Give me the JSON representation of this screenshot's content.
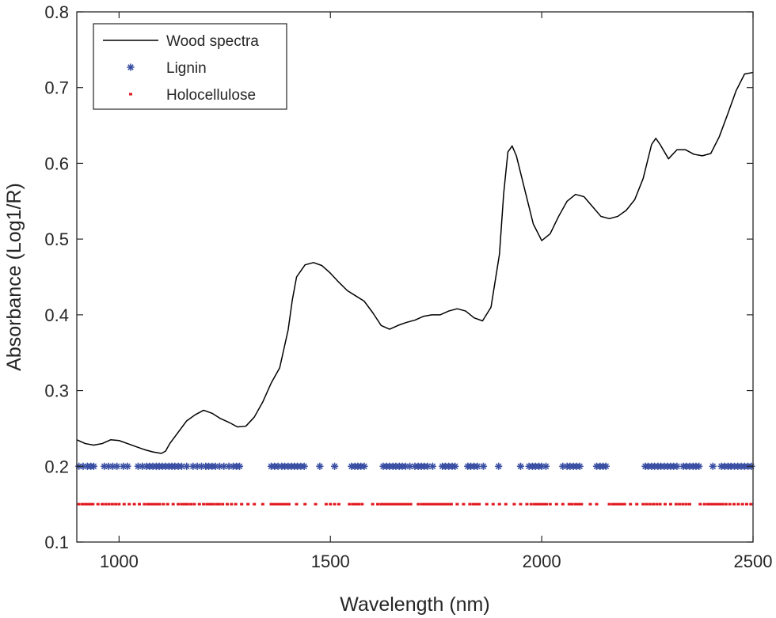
{
  "chart_data": {
    "type": "line",
    "xlabel": "Wavelength (nm)",
    "ylabel": "Absorbance (Log1/R)",
    "xlim": [
      900,
      2500
    ],
    "ylim": [
      0.1,
      0.8
    ],
    "x_ticks": [
      1000,
      1500,
      2000,
      2500
    ],
    "y_ticks": [
      0.1,
      0.2,
      0.3,
      0.4,
      0.5,
      0.6,
      0.7,
      0.8
    ],
    "x_tick_labels": [
      "1000",
      "1500",
      "2000",
      "2500"
    ],
    "y_tick_labels": [
      "0.1",
      "0.2",
      "0.3",
      "0.4",
      "0.5",
      "0.6",
      "0.7",
      "0.8"
    ],
    "grid": false,
    "legend_position": "top-left",
    "series": [
      {
        "name": "Wood spectra",
        "style": "line",
        "color": "#000000",
        "x": [
          900,
          920,
          940,
          960,
          980,
          1000,
          1020,
          1040,
          1060,
          1080,
          1100,
          1110,
          1120,
          1140,
          1160,
          1180,
          1200,
          1220,
          1240,
          1260,
          1280,
          1300,
          1320,
          1340,
          1360,
          1380,
          1400,
          1410,
          1420,
          1440,
          1460,
          1480,
          1500,
          1520,
          1540,
          1560,
          1580,
          1600,
          1620,
          1640,
          1660,
          1680,
          1700,
          1720,
          1740,
          1760,
          1780,
          1800,
          1820,
          1840,
          1860,
          1880,
          1900,
          1910,
          1920,
          1930,
          1940,
          1960,
          1980,
          2000,
          2020,
          2040,
          2060,
          2080,
          2100,
          2120,
          2140,
          2160,
          2180,
          2200,
          2220,
          2240,
          2260,
          2270,
          2280,
          2300,
          2320,
          2340,
          2360,
          2380,
          2400,
          2420,
          2440,
          2460,
          2480,
          2500
        ],
        "y": [
          0.235,
          0.23,
          0.228,
          0.23,
          0.235,
          0.234,
          0.23,
          0.226,
          0.222,
          0.219,
          0.217,
          0.22,
          0.23,
          0.245,
          0.26,
          0.268,
          0.274,
          0.27,
          0.263,
          0.258,
          0.252,
          0.253,
          0.265,
          0.285,
          0.31,
          0.33,
          0.38,
          0.42,
          0.45,
          0.466,
          0.469,
          0.465,
          0.455,
          0.443,
          0.432,
          0.425,
          0.418,
          0.403,
          0.386,
          0.381,
          0.386,
          0.39,
          0.393,
          0.398,
          0.4,
          0.4,
          0.405,
          0.408,
          0.405,
          0.396,
          0.392,
          0.41,
          0.48,
          0.56,
          0.615,
          0.623,
          0.61,
          0.565,
          0.52,
          0.498,
          0.507,
          0.53,
          0.55,
          0.559,
          0.556,
          0.543,
          0.53,
          0.527,
          0.53,
          0.538,
          0.552,
          0.58,
          0.625,
          0.633,
          0.625,
          0.606,
          0.618,
          0.618,
          0.612,
          0.61,
          0.613,
          0.635,
          0.665,
          0.696,
          0.718,
          0.72
        ]
      },
      {
        "name": "Lignin",
        "style": "marker-asterisk",
        "color": "#3a4fa3",
        "y_level": 0.2,
        "x": [
          905,
          915,
          925,
          933,
          940,
          965,
          975,
          985,
          995,
          1010,
          1020,
          1045,
          1055,
          1065,
          1072,
          1080,
          1088,
          1095,
          1102,
          1110,
          1118,
          1125,
          1132,
          1140,
          1148,
          1160,
          1175,
          1185,
          1195,
          1205,
          1212,
          1220,
          1228,
          1238,
          1248,
          1260,
          1270,
          1278,
          1285,
          1360,
          1368,
          1376,
          1385,
          1392,
          1400,
          1408,
          1415,
          1422,
          1430,
          1438,
          1475,
          1510,
          1550,
          1558,
          1565,
          1572,
          1580,
          1625,
          1633,
          1640,
          1648,
          1655,
          1663,
          1670,
          1678,
          1688,
          1700,
          1708,
          1715,
          1722,
          1730,
          1742,
          1765,
          1772,
          1780,
          1788,
          1795,
          1825,
          1832,
          1840,
          1848,
          1862,
          1898,
          1950,
          1970,
          1978,
          1985,
          1993,
          2000,
          2010,
          2050,
          2060,
          2067,
          2075,
          2082,
          2090,
          2130,
          2138,
          2145,
          2152,
          2245,
          2252,
          2260,
          2267,
          2275,
          2282,
          2290,
          2298,
          2305,
          2312,
          2320,
          2335,
          2342,
          2350,
          2358,
          2365,
          2372,
          2405,
          2425,
          2433,
          2441,
          2448,
          2456,
          2464,
          2472,
          2480,
          2488,
          2496
        ]
      },
      {
        "name": "Holocellulose",
        "style": "marker-dot",
        "color": "#e0141b",
        "y_level": 0.15,
        "x": [
          905,
          913,
          920,
          926,
          932,
          938,
          950,
          960,
          968,
          976,
          984,
          992,
          1000,
          1012,
          1024,
          1036,
          1048,
          1060,
          1068,
          1075,
          1082,
          1089,
          1096,
          1105,
          1115,
          1128,
          1140,
          1148,
          1155,
          1162,
          1170,
          1178,
          1190,
          1200,
          1208,
          1215,
          1222,
          1230,
          1237,
          1245,
          1256,
          1266,
          1276,
          1290,
          1305,
          1320,
          1340,
          1360,
          1367,
          1374,
          1381,
          1388,
          1395,
          1402,
          1420,
          1440,
          1465,
          1490,
          1500,
          1510,
          1520,
          1545,
          1553,
          1560,
          1567,
          1575,
          1600,
          1612,
          1620,
          1627,
          1634,
          1641,
          1648,
          1655,
          1662,
          1669,
          1676,
          1683,
          1690,
          1708,
          1716,
          1723,
          1730,
          1737,
          1744,
          1751,
          1758,
          1765,
          1772,
          1779,
          1786,
          1800,
          1815,
          1830,
          1838,
          1845,
          1852,
          1870,
          1885,
          1900,
          1915,
          1935,
          1950,
          1965,
          1975,
          1983,
          1990,
          1997,
          2004,
          2011,
          2020,
          2035,
          2050,
          2065,
          2072,
          2080,
          2087,
          2094,
          2115,
          2130,
          2160,
          2168,
          2175,
          2182,
          2189,
          2196,
          2210,
          2225,
          2240,
          2248,
          2256,
          2264,
          2272,
          2280,
          2292,
          2305,
          2318,
          2326,
          2334,
          2342,
          2350,
          2375,
          2385,
          2393,
          2400,
          2407,
          2414,
          2421,
          2428,
          2436,
          2445,
          2455,
          2465,
          2475,
          2485,
          2495
        ]
      }
    ]
  }
}
